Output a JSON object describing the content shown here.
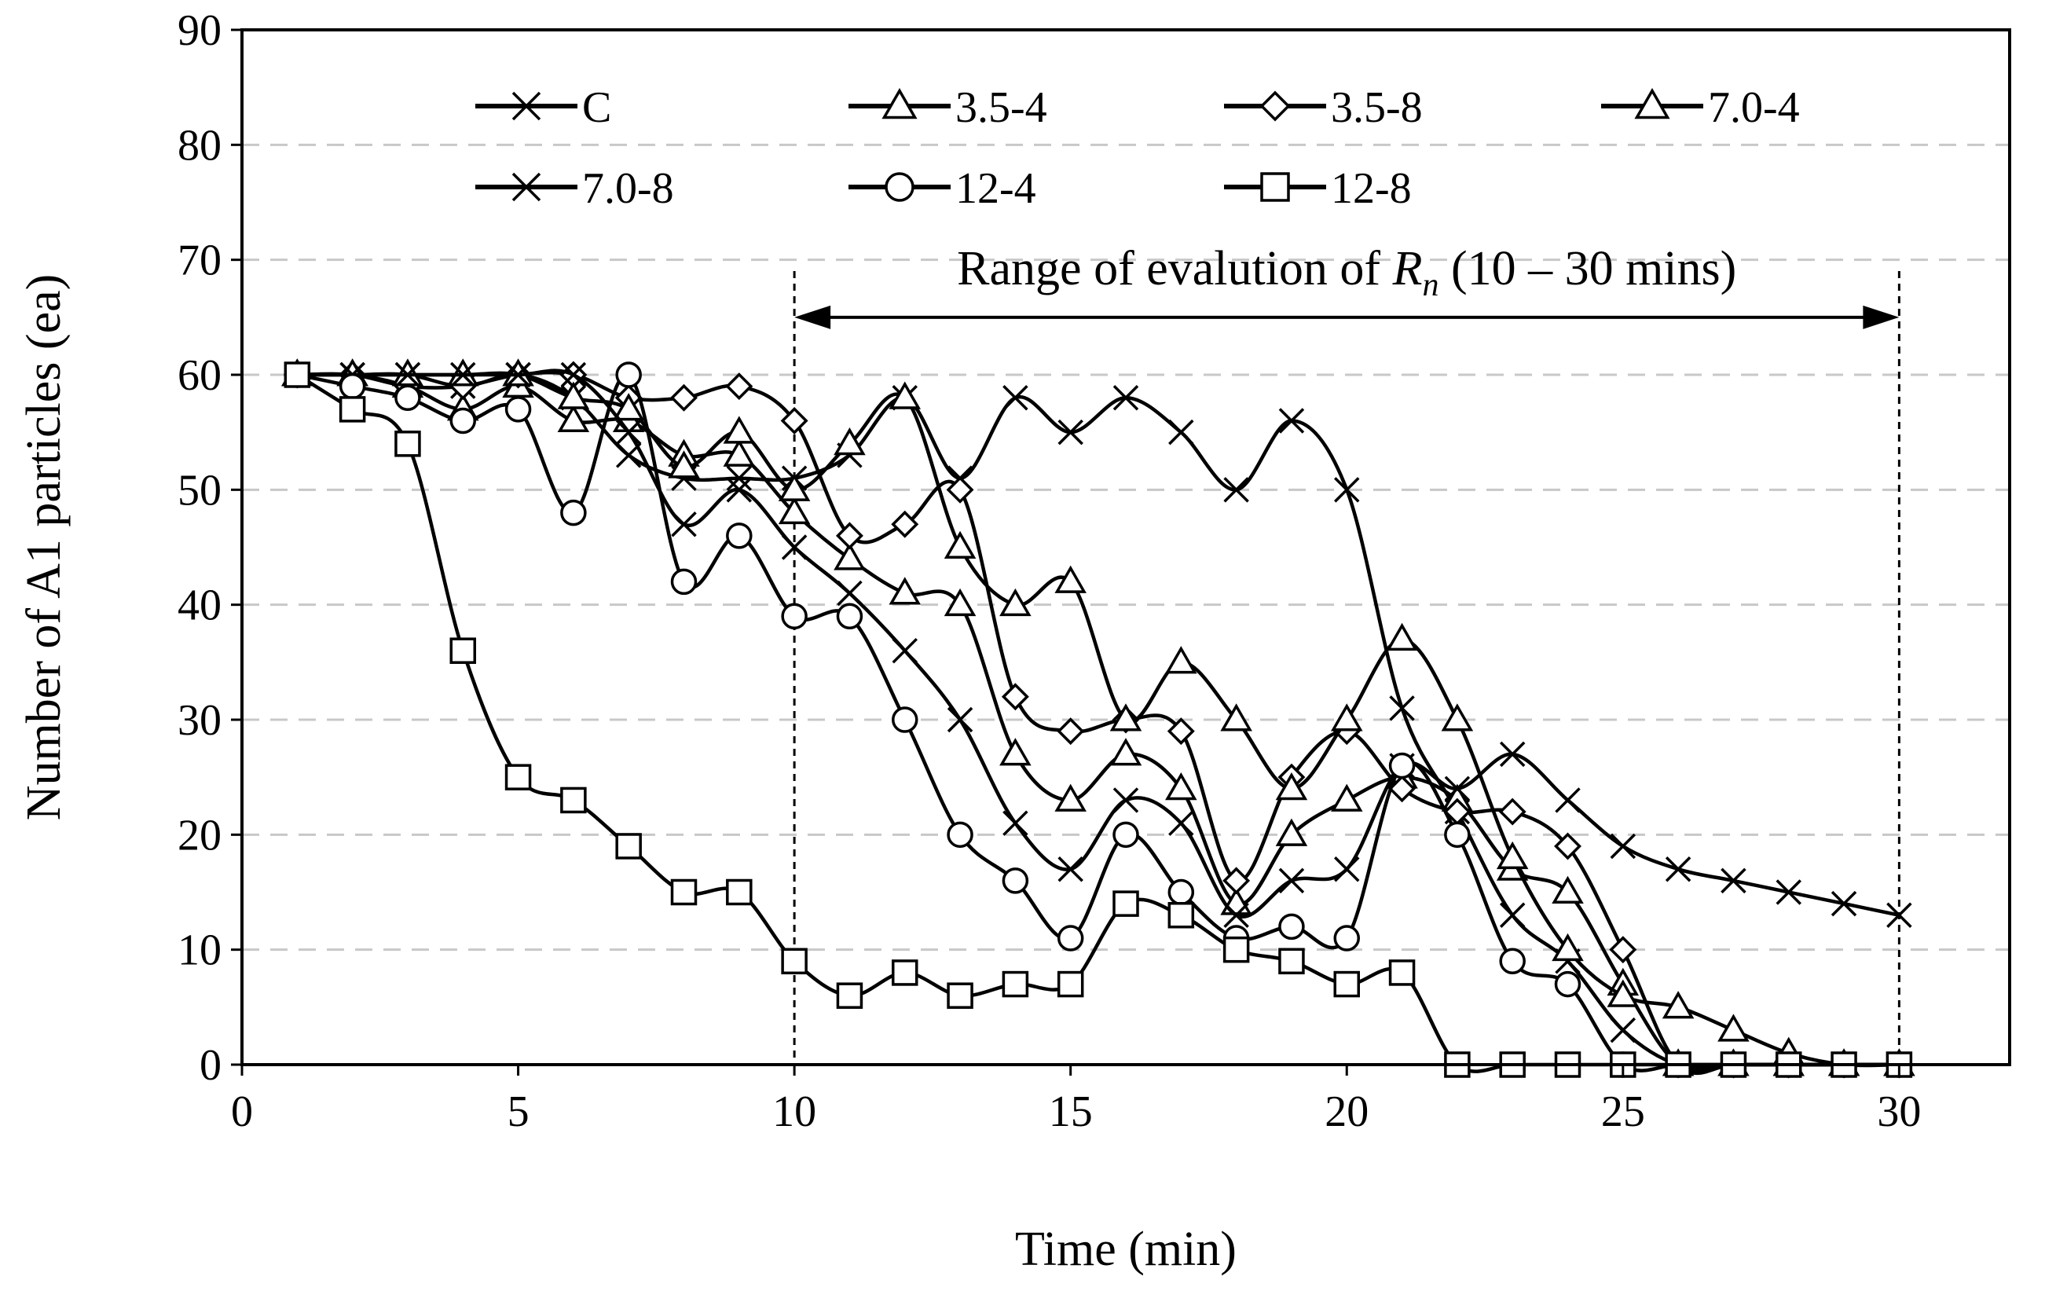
{
  "chart_data": {
    "type": "line",
    "title": "",
    "xlabel": "Time (min)",
    "ylabel": "Number of A1 particles (ea)",
    "xlim": [
      0,
      32
    ],
    "ylim": [
      0,
      90
    ],
    "xticks": [
      0,
      5,
      10,
      15,
      20,
      25,
      30
    ],
    "yticks": [
      0,
      10,
      20,
      30,
      40,
      50,
      60,
      70,
      80,
      90
    ],
    "grid": "horizontal dashed",
    "legend_position": "top",
    "x": [
      1,
      2,
      3,
      4,
      5,
      6,
      7,
      8,
      9,
      10,
      11,
      12,
      13,
      14,
      15,
      16,
      17,
      18,
      19,
      20,
      21,
      22,
      23,
      24,
      25,
      26,
      27,
      28,
      29,
      30
    ],
    "series": [
      {
        "name": "C",
        "marker": "x",
        "values": [
          60,
          60,
          60,
          59,
          60,
          58,
          53,
          51,
          51,
          51,
          53,
          58,
          51,
          58,
          55,
          58,
          55,
          50,
          56,
          50,
          31,
          22,
          13,
          9,
          3,
          0,
          0,
          0,
          0,
          0
        ]
      },
      {
        "name": "3.5-4",
        "marker": "triangle",
        "values": [
          60,
          60,
          59,
          57,
          59,
          56,
          56,
          53,
          53,
          48,
          44,
          41,
          40,
          27,
          23,
          27,
          24,
          14,
          20,
          23,
          25,
          23,
          17,
          15,
          7,
          0,
          0,
          0,
          0,
          0
        ]
      },
      {
        "name": "3.5-8",
        "marker": "diamond",
        "values": [
          60,
          60,
          59,
          59,
          60,
          60,
          58,
          58,
          59,
          56,
          46,
          47,
          50,
          32,
          29,
          30,
          29,
          16,
          25,
          29,
          24,
          22,
          22,
          19,
          10,
          0,
          0,
          0,
          0,
          0
        ]
      },
      {
        "name": "7.0-4",
        "marker": "triangle",
        "values": [
          60,
          60,
          60,
          60,
          60,
          58,
          57,
          52,
          55,
          50,
          54,
          58,
          45,
          40,
          42,
          30,
          35,
          30,
          24,
          30,
          37,
          30,
          18,
          10,
          6,
          5,
          3,
          1,
          0,
          0
        ]
      },
      {
        "name": "7.0-8",
        "marker": "x",
        "values": [
          60,
          60,
          60,
          60,
          60,
          60,
          55,
          47,
          50,
          45,
          41,
          36,
          30,
          21,
          17,
          23,
          21,
          13,
          16,
          17,
          26,
          24,
          27,
          23,
          19,
          17,
          16,
          15,
          14,
          13
        ]
      },
      {
        "name": "12-4",
        "marker": "circle",
        "values": [
          60,
          59,
          58,
          56,
          57,
          48,
          60,
          42,
          46,
          39,
          39,
          30,
          20,
          16,
          11,
          20,
          15,
          11,
          12,
          11,
          26,
          20,
          9,
          7,
          0,
          0,
          0,
          0,
          0,
          0
        ]
      },
      {
        "name": "12-8",
        "marker": "square",
        "values": [
          60,
          57,
          54,
          36,
          25,
          23,
          19,
          15,
          15,
          9,
          6,
          8,
          6,
          7,
          7,
          14,
          13,
          10,
          9,
          7,
          8,
          0,
          0,
          0,
          0,
          0,
          0,
          0,
          0,
          0
        ]
      }
    ],
    "annotation": {
      "text_prefix": "Range of evalution of ",
      "symbol": "R",
      "subscript": "n",
      "text_suffix": " (10 – 30 mins)",
      "x_start": 10,
      "x_end": 30,
      "arrow_y": 65
    }
  }
}
